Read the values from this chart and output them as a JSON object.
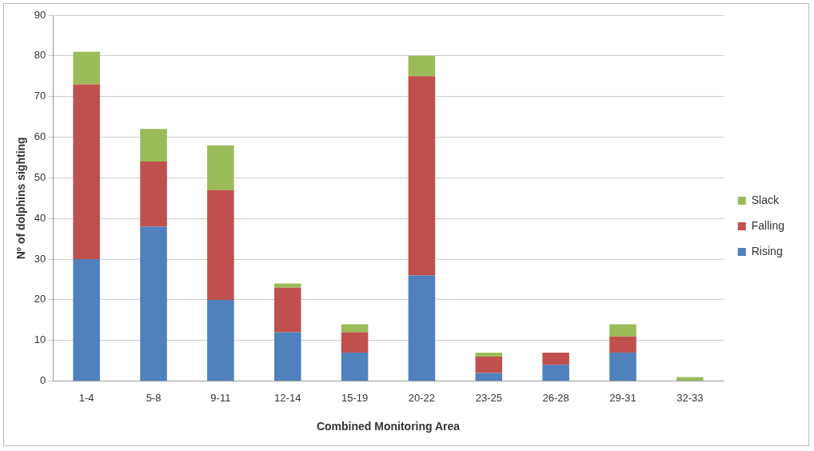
{
  "chart_data": {
    "type": "bar",
    "stacked": true,
    "xlabel": "Combined Monitoring Area",
    "ylabel": "Nº of dolphins sighting",
    "categories": [
      "1-4",
      "5-8",
      "9-11",
      "12-14",
      "15-19",
      "20-22",
      "23-25",
      "26-28",
      "29-31",
      "32-33"
    ],
    "series": [
      {
        "name": "Rising",
        "color": "#4f81bd",
        "values": [
          30,
          38,
          20,
          12,
          7,
          26,
          2,
          4,
          7,
          0
        ]
      },
      {
        "name": "Falling",
        "color": "#c0504d",
        "values": [
          43,
          16,
          27,
          11,
          5,
          49,
          4,
          3,
          4,
          0
        ]
      },
      {
        "name": "Slack",
        "color": "#9bbb59",
        "values": [
          8,
          8,
          11,
          1,
          2,
          5,
          1,
          0,
          3,
          1
        ]
      }
    ],
    "ylim": [
      0,
      90
    ],
    "yticks": [
      0,
      10,
      20,
      30,
      40,
      50,
      60,
      70,
      80,
      90
    ],
    "grid": "y",
    "legend": "right"
  }
}
